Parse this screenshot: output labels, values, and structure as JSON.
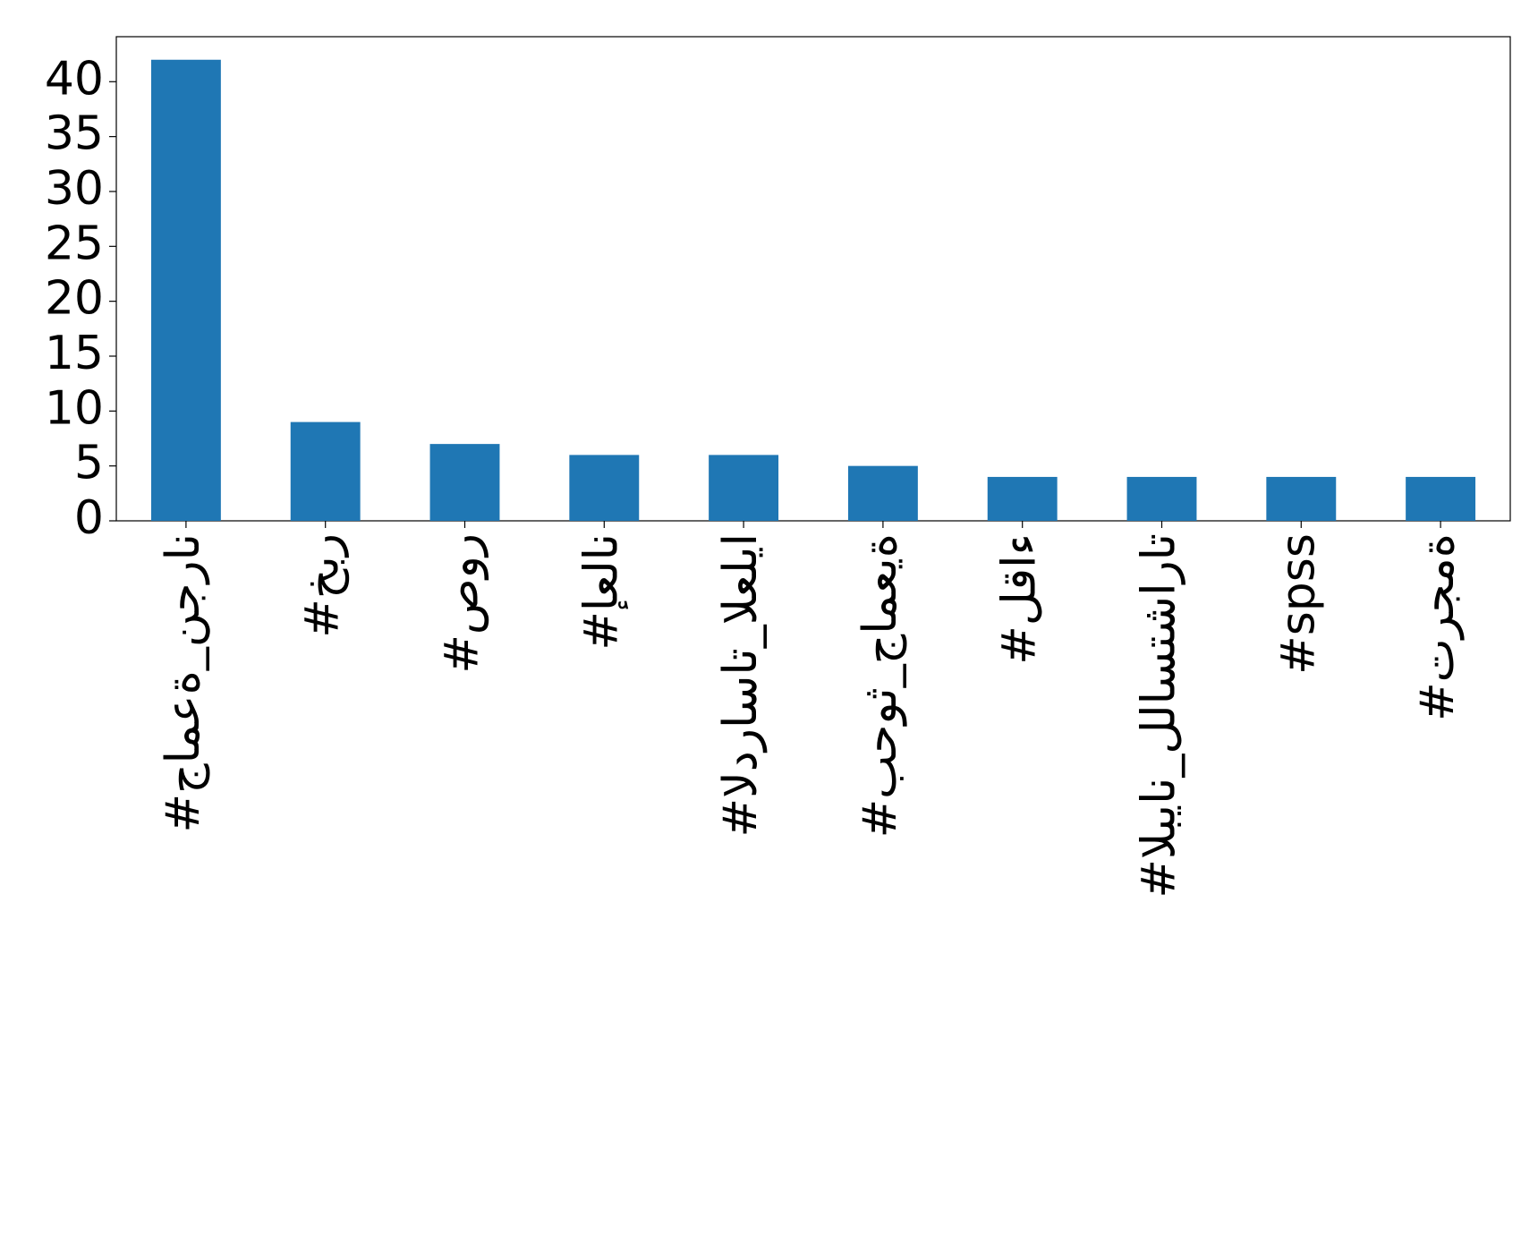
{
  "chart_data": {
    "type": "bar",
    "categories": [
      "#جامعة_نجران",
      "#خبر",
      "#صور",
      "#إعلان",
      "#الدراسات_العليا",
      "#بحوث_جامعية",
      "#لقاء",
      "#البيان_للاستشارات",
      "#spss",
      "#ترجمة"
    ],
    "values": [
      42,
      9,
      7,
      6,
      6,
      5,
      4,
      4,
      4,
      4
    ],
    "color": "#1f77b4",
    "ylim": [
      0,
      44.1
    ],
    "yticks": [
      0,
      5,
      10,
      15,
      20,
      25,
      30,
      35,
      40
    ],
    "grid": false
  }
}
